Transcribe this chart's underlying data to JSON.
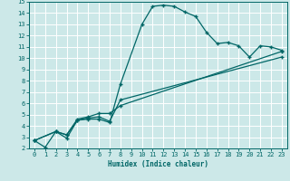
{
  "title": "",
  "xlabel": "Humidex (Indice chaleur)",
  "bg_color": "#cce8e8",
  "grid_color": "#ffffff",
  "line_color": "#006666",
  "xlim": [
    -0.5,
    23.5
  ],
  "ylim": [
    2,
    15
  ],
  "xticks": [
    0,
    1,
    2,
    3,
    4,
    5,
    6,
    7,
    8,
    9,
    10,
    11,
    12,
    13,
    14,
    15,
    16,
    17,
    18,
    19,
    20,
    21,
    22,
    23
  ],
  "yticks": [
    2,
    3,
    4,
    5,
    6,
    7,
    8,
    9,
    10,
    11,
    12,
    13,
    14,
    15
  ],
  "line1_x": [
    0,
    1,
    2,
    3,
    4,
    5,
    6,
    7,
    8,
    10,
    11,
    12,
    13,
    14,
    15,
    16,
    17,
    18,
    19,
    20,
    21,
    22,
    23
  ],
  "line1_y": [
    2.7,
    2.1,
    3.5,
    2.9,
    4.5,
    4.6,
    4.6,
    4.3,
    7.7,
    13.0,
    14.6,
    14.7,
    14.6,
    14.1,
    13.7,
    12.3,
    11.3,
    11.4,
    11.1,
    10.1,
    11.1,
    11.0,
    10.7
  ],
  "line2_x": [
    0,
    2,
    3,
    4,
    5,
    6,
    7,
    8,
    23
  ],
  "line2_y": [
    2.7,
    3.5,
    3.2,
    4.6,
    4.8,
    5.1,
    5.1,
    5.8,
    10.6
  ],
  "line3_x": [
    0,
    2,
    3,
    4,
    5,
    6,
    7,
    8,
    23
  ],
  "line3_y": [
    2.7,
    3.5,
    3.2,
    4.5,
    4.7,
    4.8,
    4.4,
    6.3,
    10.1
  ]
}
